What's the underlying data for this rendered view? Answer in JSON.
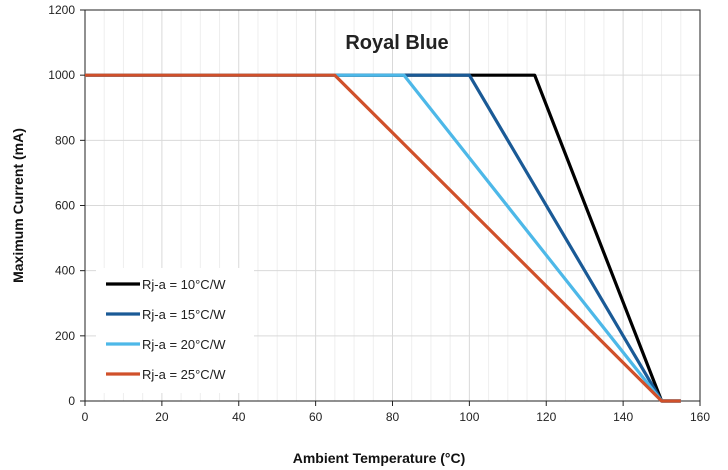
{
  "chart_data": {
    "type": "line",
    "title": "Royal Blue",
    "xlabel": "Ambient Temperature (°C)",
    "ylabel": "Maximum Current (mA)",
    "xlim": [
      0,
      160
    ],
    "ylim": [
      0,
      1200
    ],
    "xticks": [
      0,
      20,
      40,
      60,
      80,
      100,
      120,
      140,
      160
    ],
    "yticks": [
      0,
      200,
      400,
      600,
      800,
      1000,
      1200
    ],
    "grid": true,
    "legend_position": "bottom-left",
    "series": [
      {
        "name": "Rj-a = 10°C/W",
        "color": "#000000",
        "points": [
          [
            0,
            1000
          ],
          [
            117,
            1000
          ],
          [
            150,
            0
          ],
          [
            155,
            0
          ]
        ]
      },
      {
        "name": "Rj-a = 15°C/W",
        "color": "#1a5a96",
        "points": [
          [
            0,
            1000
          ],
          [
            100,
            1000
          ],
          [
            150,
            0
          ],
          [
            155,
            0
          ]
        ]
      },
      {
        "name": "Rj-a = 20°C/W",
        "color": "#4db8e8",
        "points": [
          [
            0,
            1000
          ],
          [
            83,
            1000
          ],
          [
            150,
            0
          ],
          [
            155,
            0
          ]
        ]
      },
      {
        "name": "Rj-a = 25°C/W",
        "color": "#d0502a",
        "points": [
          [
            0,
            1000
          ],
          [
            65,
            1000
          ],
          [
            150,
            0
          ],
          [
            155,
            0
          ]
        ]
      }
    ]
  }
}
